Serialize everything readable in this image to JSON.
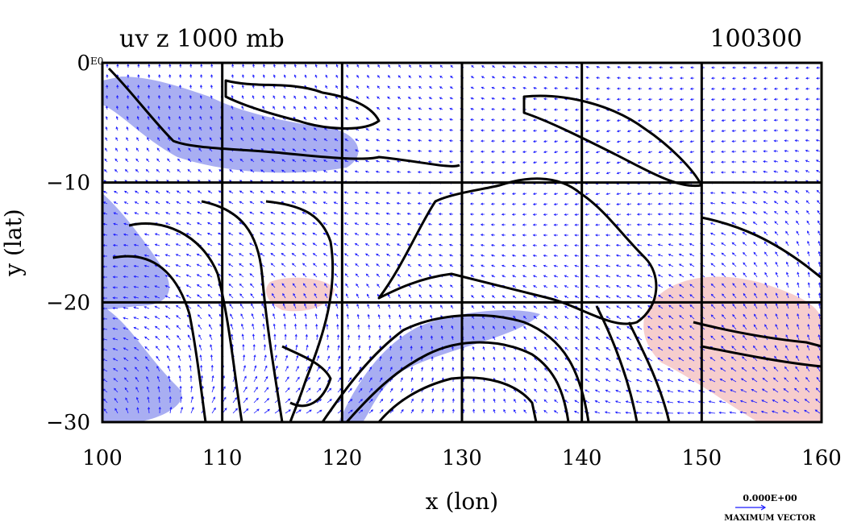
{
  "title_left": "uv z 1000 mb",
  "title_right": "100300",
  "xlabel": "x (lon)",
  "ylabel": "y (lat)",
  "x_ticks": [
    "100",
    "110",
    "120",
    "130",
    "140",
    "150",
    "160"
  ],
  "y_ticks": [
    "0",
    "−10",
    "−20",
    "−30"
  ],
  "y_tick_exponent": "E0",
  "vector_legend": {
    "value": "0.000E+00",
    "label": "MAXIMUM VECTOR"
  },
  "axes": {
    "xlim": [
      100,
      160
    ],
    "ylim": [
      -30,
      0
    ],
    "grid_lon_step": 10,
    "grid_lat_step": 10
  },
  "colors": {
    "vectors": "#1a1aff",
    "negative_shade": "#9aa0f0",
    "positive_shade": "#f4c4c4",
    "contours": "#000000"
  }
}
